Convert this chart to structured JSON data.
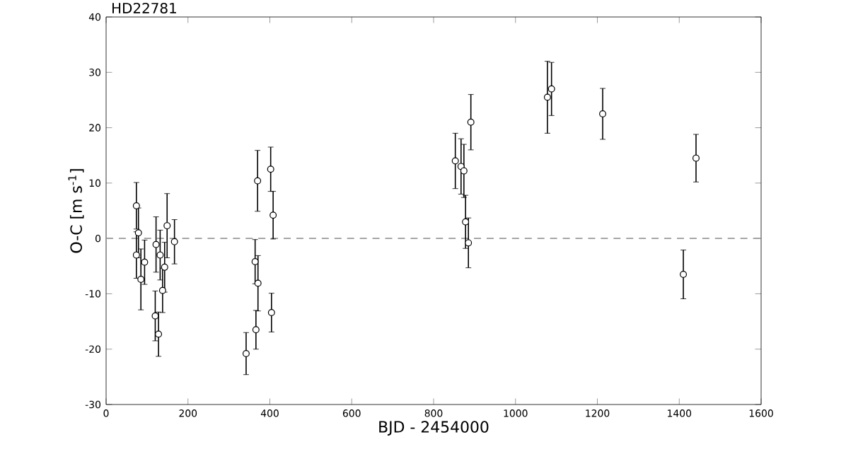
{
  "chart_data": {
    "type": "scatter",
    "title": "HD22781",
    "xlabel": "BJD - 2454000",
    "ylabel": "O-C [m s$^{-1}$]",
    "x": [
      74,
      79,
      74,
      85,
      94,
      122,
      120,
      128,
      132,
      138,
      143,
      149,
      167,
      342,
      370,
      364,
      371,
      366,
      402,
      408,
      404,
      853,
      867,
      874,
      878,
      885,
      891,
      1078,
      1088,
      1213,
      1410,
      1441
    ],
    "series": [
      {
        "color": "#000000",
        "values": [
          5.9,
          1.0,
          -3.0,
          -7.4,
          -4.3,
          -1.1,
          -14.0,
          -17.3,
          -3.0,
          -9.4,
          -5.2,
          2.3,
          -0.6,
          -20.8,
          10.4,
          -4.2,
          -8.1,
          -16.5,
          12.5,
          4.2,
          -13.4,
          14.0,
          13.0,
          12.2,
          3.0,
          -0.8,
          21.0,
          25.5,
          27.0,
          22.5,
          -6.5,
          14.5
        ],
        "errors": [
          4.2,
          4.5,
          4.2,
          5.5,
          4.0,
          5.0,
          4.5,
          4.0,
          4.5,
          4.0,
          4.5,
          5.8,
          4.0,
          3.8,
          5.5,
          4.0,
          5.0,
          3.5,
          4.0,
          4.3,
          3.5,
          5.0,
          5.0,
          4.8,
          4.8,
          4.5,
          5.0,
          6.5,
          4.8,
          4.6,
          4.4,
          4.3
        ]
      }
    ],
    "marker": "circle",
    "xlim": [
      0,
      1600
    ],
    "ylim": [
      -30,
      40
    ],
    "xticks": [
      0,
      200,
      400,
      600,
      800,
      1000,
      1200,
      1400,
      1600
    ],
    "yticks": [
      -30,
      -20,
      -10,
      0,
      10,
      20,
      30,
      40
    ],
    "ref_lines": [
      {
        "axis": "y",
        "value": 0,
        "color": "#999999",
        "line_style": "dashed"
      }
    ]
  }
}
